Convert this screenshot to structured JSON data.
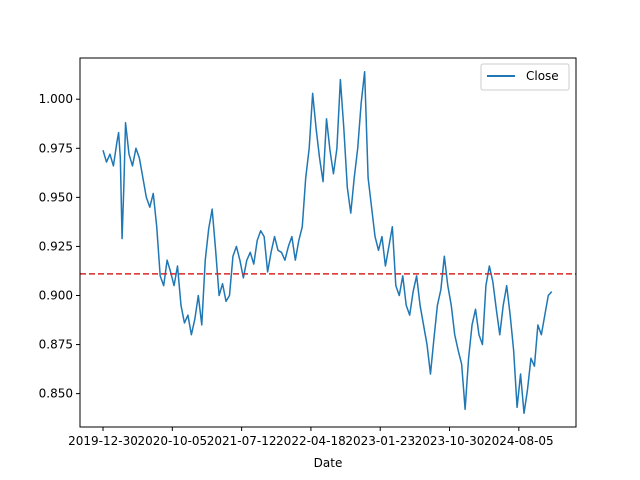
{
  "chart_data": {
    "type": "line",
    "xlabel": "Date",
    "ylabel": "",
    "x_ticks": [
      "2019-12-30",
      "2020-10-05",
      "2021-07-12",
      "2022-04-18",
      "2023-01-23",
      "2023-10-30",
      "2024-08-05"
    ],
    "y_ticks": [
      "0.850",
      "0.875",
      "0.900",
      "0.925",
      "0.950",
      "0.975",
      "1.000"
    ],
    "ylim": [
      0.833,
      1.021
    ],
    "xlim": [
      "2019-09-28",
      "2025-03-24"
    ],
    "legend": {
      "position": "top-right",
      "entries": [
        "Close"
      ]
    },
    "grid": false,
    "reference_line": {
      "y": 0.911,
      "style": "dashed",
      "color": "#d62728"
    },
    "series": [
      {
        "name": "Close",
        "color": "#1f77b4",
        "x": [
          "2019-12-30",
          "2020-01-13",
          "2020-01-27",
          "2020-02-10",
          "2020-02-24",
          "2020-03-02",
          "2020-03-09",
          "2020-03-16",
          "2020-03-23",
          "2020-03-30",
          "2020-04-13",
          "2020-04-27",
          "2020-05-11",
          "2020-05-25",
          "2020-06-08",
          "2020-06-22",
          "2020-07-06",
          "2020-07-20",
          "2020-08-03",
          "2020-08-17",
          "2020-08-31",
          "2020-09-14",
          "2020-09-28",
          "2020-10-12",
          "2020-10-26",
          "2020-11-09",
          "2020-11-23",
          "2020-12-07",
          "2020-12-21",
          "2021-01-04",
          "2021-01-18",
          "2021-02-01",
          "2021-02-15",
          "2021-03-01",
          "2021-03-15",
          "2021-03-29",
          "2021-04-12",
          "2021-04-26",
          "2021-05-10",
          "2021-05-24",
          "2021-06-07",
          "2021-06-21",
          "2021-07-05",
          "2021-07-19",
          "2021-08-02",
          "2021-08-16",
          "2021-08-30",
          "2021-09-13",
          "2021-09-27",
          "2021-10-11",
          "2021-10-25",
          "2021-11-08",
          "2021-11-22",
          "2021-12-06",
          "2021-12-20",
          "2022-01-03",
          "2022-01-17",
          "2022-01-31",
          "2022-02-14",
          "2022-02-28",
          "2022-03-14",
          "2022-03-28",
          "2022-04-11",
          "2022-04-25",
          "2022-05-09",
          "2022-05-23",
          "2022-06-06",
          "2022-06-20",
          "2022-07-04",
          "2022-07-18",
          "2022-08-01",
          "2022-08-15",
          "2022-08-29",
          "2022-09-12",
          "2022-09-26",
          "2022-10-10",
          "2022-10-24",
          "2022-11-07",
          "2022-11-21",
          "2022-12-05",
          "2022-12-19",
          "2023-01-02",
          "2023-01-16",
          "2023-01-30",
          "2023-02-13",
          "2023-02-27",
          "2023-03-13",
          "2023-03-27",
          "2023-04-10",
          "2023-04-24",
          "2023-05-08",
          "2023-05-22",
          "2023-06-05",
          "2023-06-19",
          "2023-07-03",
          "2023-07-17",
          "2023-07-31",
          "2023-08-14",
          "2023-08-28",
          "2023-09-11",
          "2023-09-25",
          "2023-10-09",
          "2023-10-23",
          "2023-11-06",
          "2023-11-20",
          "2023-12-04",
          "2023-12-18",
          "2024-01-01",
          "2024-01-15",
          "2024-01-29",
          "2024-02-12",
          "2024-02-26",
          "2024-03-11",
          "2024-03-25",
          "2024-04-08",
          "2024-04-22",
          "2024-05-06",
          "2024-05-20",
          "2024-06-03",
          "2024-06-17",
          "2024-07-01",
          "2024-07-15",
          "2024-07-29",
          "2024-08-12",
          "2024-08-26",
          "2024-09-09",
          "2024-09-23",
          "2024-10-07",
          "2024-10-21",
          "2024-11-04",
          "2024-11-18",
          "2024-12-02",
          "2024-12-16"
        ],
        "values": [
          0.974,
          0.968,
          0.972,
          0.966,
          0.978,
          0.983,
          0.97,
          0.929,
          0.955,
          0.988,
          0.972,
          0.966,
          0.975,
          0.97,
          0.96,
          0.95,
          0.945,
          0.952,
          0.935,
          0.91,
          0.905,
          0.918,
          0.912,
          0.905,
          0.915,
          0.895,
          0.886,
          0.89,
          0.88,
          0.888,
          0.9,
          0.885,
          0.918,
          0.934,
          0.944,
          0.923,
          0.9,
          0.906,
          0.897,
          0.9,
          0.92,
          0.925,
          0.918,
          0.909,
          0.918,
          0.922,
          0.916,
          0.928,
          0.933,
          0.93,
          0.912,
          0.922,
          0.93,
          0.923,
          0.922,
          0.918,
          0.925,
          0.93,
          0.918,
          0.928,
          0.935,
          0.96,
          0.975,
          1.003,
          0.985,
          0.97,
          0.958,
          0.99,
          0.974,
          0.962,
          0.975,
          1.01,
          0.985,
          0.955,
          0.942,
          0.96,
          0.975,
          0.998,
          1.014,
          0.96,
          0.945,
          0.93,
          0.923,
          0.93,
          0.915,
          0.925,
          0.935,
          0.905,
          0.9,
          0.91,
          0.895,
          0.89,
          0.902,
          0.91,
          0.895,
          0.885,
          0.875,
          0.86,
          0.878,
          0.895,
          0.903,
          0.92,
          0.905,
          0.895,
          0.88,
          0.872,
          0.865,
          0.842,
          0.868,
          0.885,
          0.893,
          0.88,
          0.875,
          0.905,
          0.915,
          0.907,
          0.893,
          0.88,
          0.895,
          0.905,
          0.89,
          0.872,
          0.843,
          0.86,
          0.84,
          0.852,
          0.868,
          0.864,
          0.885,
          0.88,
          0.89,
          0.9,
          0.902
        ]
      }
    ]
  }
}
